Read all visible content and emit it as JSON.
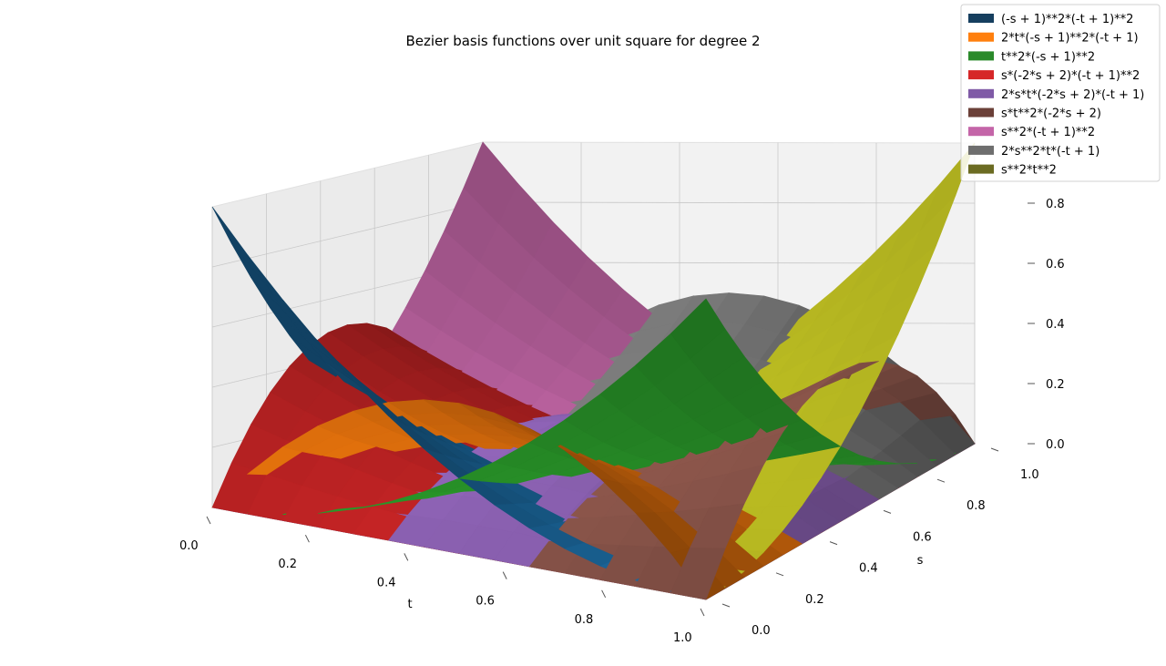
{
  "chart_data": {
    "type": "surface3d",
    "title": "Bezier basis functions over unit square for degree 2",
    "xlabel": "t",
    "ylabel": "s",
    "zlabel": "",
    "xlim": [
      0,
      1
    ],
    "ylim": [
      0,
      1
    ],
    "zlim": [
      0,
      1
    ],
    "x_ticks": [
      "0.0",
      "0.2",
      "0.4",
      "0.6",
      "0.8",
      "1.0"
    ],
    "y_ticks": [
      "0.0",
      "0.2",
      "0.4",
      "0.6",
      "0.8",
      "1.0"
    ],
    "z_ticks": [
      "0.0",
      "0.2",
      "0.4",
      "0.6",
      "0.8"
    ],
    "grid": true,
    "legend_position": "top-right",
    "series": [
      {
        "name": "(-s + 1)**2*(-t + 1)**2",
        "i": 0,
        "j": 0,
        "color": "#1f77b4",
        "legend_color": "#163f5f"
      },
      {
        "name": "2*t*(-s + 1)**2*(-t + 1)",
        "i": 0,
        "j": 1,
        "color": "#ff7f0e",
        "legend_color": "#ff7f0e"
      },
      {
        "name": "t**2*(-s + 1)**2",
        "i": 0,
        "j": 2,
        "color": "#2ca02c",
        "legend_color": "#2a8a2a"
      },
      {
        "name": "s*(-2*s + 2)*(-t + 1)**2",
        "i": 1,
        "j": 0,
        "color": "#d62728",
        "legend_color": "#d62728"
      },
      {
        "name": "2*s*t*(-2*s + 2)*(-t + 1)",
        "i": 1,
        "j": 1,
        "color": "#9467bd",
        "legend_color": "#7f5aa6"
      },
      {
        "name": "s*t**2*(-2*s + 2)",
        "i": 1,
        "j": 2,
        "color": "#8c564b",
        "legend_color": "#6b4038"
      },
      {
        "name": "s**2*(-t + 1)**2",
        "i": 2,
        "j": 0,
        "color": "#e377c2",
        "legend_color": "#c465a8"
      },
      {
        "name": "2*s**2*t*(-t + 1)",
        "i": 2,
        "j": 1,
        "color": "#7f7f7f",
        "legend_color": "#6e6e6e"
      },
      {
        "name": "s**2*t**2",
        "i": 2,
        "j": 2,
        "color": "#bcbd22",
        "legend_color": "#6b6b22"
      }
    ]
  }
}
